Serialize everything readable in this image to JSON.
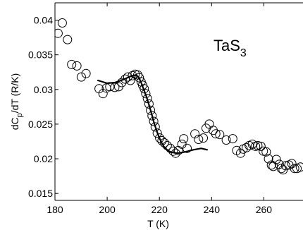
{
  "chart_data": {
    "type": "scatter",
    "xlabel": "T (K)",
    "ylabel_main": "dC",
    "ylabel_sub": "p",
    "ylabel_tail": "/dT (R/K)",
    "xlim": [
      180,
      275
    ],
    "ylim": [
      0.014,
      0.0425
    ],
    "grid": false,
    "legend": "none",
    "x_ticks": [
      180,
      200,
      220,
      240,
      260
    ],
    "x_tick_labels": [
      "180",
      "200",
      "220",
      "240",
      "260"
    ],
    "y_ticks": [
      0.015,
      0.02,
      0.025,
      0.03,
      0.035,
      0.04
    ],
    "y_tick_labels": [
      "0.015",
      "0.02",
      "0.025",
      "0.03",
      "0.035",
      "0.04"
    ],
    "annotation": {
      "main": "TaS",
      "sub": "3"
    },
    "series": [
      {
        "kind": "markers",
        "marker": "open-circle",
        "points": [
          [
            181.2,
            0.0381
          ],
          [
            182.8,
            0.0396
          ],
          [
            184.8,
            0.0372
          ],
          [
            186.4,
            0.0336
          ],
          [
            188.4,
            0.0334
          ],
          [
            190.1,
            0.0318
          ],
          [
            191.9,
            0.0323
          ],
          [
            196.9,
            0.0301
          ],
          [
            198.4,
            0.0294
          ],
          [
            199.7,
            0.0302
          ],
          [
            201.0,
            0.0304
          ],
          [
            202.9,
            0.0303
          ],
          [
            204.4,
            0.0304
          ],
          [
            205.6,
            0.031
          ],
          [
            206.9,
            0.0315
          ],
          [
            207.9,
            0.0318
          ],
          [
            208.9,
            0.0313
          ],
          [
            209.7,
            0.032
          ],
          [
            210.7,
            0.0322
          ],
          [
            211.7,
            0.0321
          ],
          [
            212.3,
            0.0317
          ],
          [
            213.0,
            0.0311
          ],
          [
            213.6,
            0.0306
          ],
          [
            214.2,
            0.0301
          ],
          [
            214.8,
            0.0294
          ],
          [
            215.4,
            0.0287
          ],
          [
            216.0,
            0.0279
          ],
          [
            216.6,
            0.027
          ],
          [
            217.2,
            0.0262
          ],
          [
            217.8,
            0.0254
          ],
          [
            218.4,
            0.0246
          ],
          [
            219.2,
            0.0237
          ],
          [
            220.1,
            0.023
          ],
          [
            221.0,
            0.0226
          ],
          [
            221.9,
            0.0223
          ],
          [
            223.0,
            0.0219
          ],
          [
            224.2,
            0.0215
          ],
          [
            225.3,
            0.0211
          ],
          [
            226.2,
            0.0208
          ],
          [
            227.3,
            0.0212
          ],
          [
            228.6,
            0.0221
          ],
          [
            229.3,
            0.0229
          ],
          [
            230.6,
            0.0215
          ],
          [
            233.6,
            0.0236
          ],
          [
            235.0,
            0.0228
          ],
          [
            236.8,
            0.023
          ],
          [
            237.9,
            0.0244
          ],
          [
            239.1,
            0.025
          ],
          [
            240.6,
            0.0241
          ],
          [
            241.6,
            0.0236
          ],
          [
            243.1,
            0.0235
          ],
          [
            245.6,
            0.0227
          ],
          [
            248.1,
            0.0229
          ],
          [
            249.6,
            0.0212
          ],
          [
            251.1,
            0.0208
          ],
          [
            252.1,
            0.0214
          ],
          [
            253.3,
            0.0216
          ],
          [
            254.4,
            0.0219
          ],
          [
            255.6,
            0.0221
          ],
          [
            256.8,
            0.0218
          ],
          [
            257.7,
            0.0219
          ],
          [
            258.9,
            0.0218
          ],
          [
            259.8,
            0.0211
          ],
          [
            260.9,
            0.021
          ],
          [
            261.8,
            0.02
          ],
          [
            262.9,
            0.0191
          ],
          [
            263.6,
            0.0189
          ],
          [
            264.8,
            0.0199
          ],
          [
            265.9,
            0.0192
          ],
          [
            266.7,
            0.0186
          ],
          [
            267.4,
            0.0184
          ],
          [
            268.4,
            0.019
          ],
          [
            269.6,
            0.0191
          ],
          [
            270.7,
            0.0193
          ],
          [
            271.8,
            0.0186
          ],
          [
            272.7,
            0.0186
          ],
          [
            274.0,
            0.0188
          ]
        ]
      },
      {
        "kind": "line",
        "points": [
          [
            196.5,
            0.0313
          ],
          [
            200.0,
            0.0309
          ],
          [
            203.0,
            0.031
          ],
          [
            206.0,
            0.0314
          ],
          [
            209.0,
            0.0319
          ],
          [
            211.0,
            0.0321
          ],
          [
            212.0,
            0.0318
          ],
          [
            213.0,
            0.031
          ],
          [
            214.0,
            0.03
          ],
          [
            215.0,
            0.029
          ],
          [
            216.0,
            0.0278
          ],
          [
            217.0,
            0.0265
          ],
          [
            218.0,
            0.0251
          ],
          [
            219.0,
            0.024
          ],
          [
            220.0,
            0.023
          ],
          [
            221.0,
            0.0222
          ],
          [
            222.0,
            0.0216
          ],
          [
            223.5,
            0.0211
          ],
          [
            225.0,
            0.0209
          ],
          [
            227.0,
            0.0208
          ],
          [
            230.0,
            0.021
          ],
          [
            233.0,
            0.0213
          ],
          [
            236.0,
            0.0215
          ],
          [
            238.3,
            0.0213
          ]
        ]
      }
    ]
  }
}
